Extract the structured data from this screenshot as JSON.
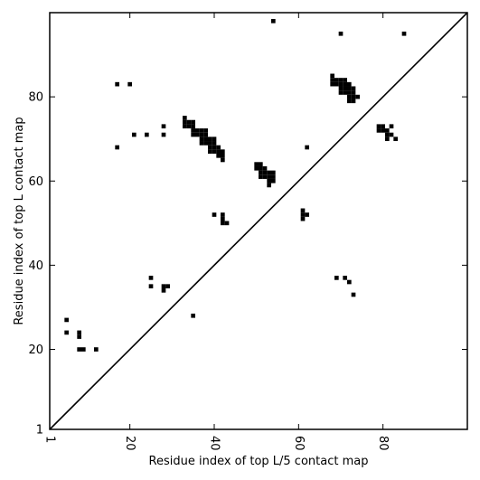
{
  "chart_data": {
    "type": "scatter",
    "title": "",
    "xlabel": "Residue index of top L/5 contact map",
    "ylabel": "Residue index of top L contact map",
    "xlim": [
      1,
      100
    ],
    "ylim": [
      1,
      100
    ],
    "xticks": [
      1,
      20,
      40,
      60,
      80
    ],
    "yticks": [
      1,
      20,
      40,
      60,
      80
    ],
    "grid": false,
    "diagonal": true,
    "marker_color": "#000000",
    "series": [
      {
        "points": [
          [
            54,
            98
          ],
          [
            70,
            95
          ],
          [
            85,
            95
          ],
          [
            17,
            83
          ],
          [
            20,
            83
          ],
          [
            68,
            85
          ],
          [
            68,
            84
          ],
          [
            69,
            84
          ],
          [
            70,
            84
          ],
          [
            71,
            84
          ],
          [
            68,
            83
          ],
          [
            69,
            83
          ],
          [
            70,
            83
          ],
          [
            71,
            83
          ],
          [
            72,
            83
          ],
          [
            70,
            82
          ],
          [
            71,
            82
          ],
          [
            72,
            82
          ],
          [
            73,
            82
          ],
          [
            70,
            81
          ],
          [
            71,
            81
          ],
          [
            72,
            81
          ],
          [
            73,
            81
          ],
          [
            72,
            80
          ],
          [
            73,
            80
          ],
          [
            74,
            80
          ],
          [
            72,
            79
          ],
          [
            73,
            79
          ],
          [
            33,
            75
          ],
          [
            33,
            74
          ],
          [
            34,
            74
          ],
          [
            35,
            74
          ],
          [
            33,
            73
          ],
          [
            34,
            73
          ],
          [
            35,
            73
          ],
          [
            28,
            73
          ],
          [
            35,
            72
          ],
          [
            36,
            72
          ],
          [
            37,
            72
          ],
          [
            38,
            72
          ],
          [
            21,
            71
          ],
          [
            24,
            71
          ],
          [
            28,
            71
          ],
          [
            35,
            71
          ],
          [
            36,
            71
          ],
          [
            37,
            71
          ],
          [
            38,
            71
          ],
          [
            37,
            70
          ],
          [
            38,
            70
          ],
          [
            39,
            70
          ],
          [
            40,
            70
          ],
          [
            37,
            69
          ],
          [
            38,
            69
          ],
          [
            39,
            69
          ],
          [
            40,
            69
          ],
          [
            17,
            68
          ],
          [
            39,
            68
          ],
          [
            40,
            68
          ],
          [
            41,
            68
          ],
          [
            62,
            68
          ],
          [
            39,
            67
          ],
          [
            40,
            67
          ],
          [
            41,
            67
          ],
          [
            42,
            67
          ],
          [
            41,
            66
          ],
          [
            42,
            66
          ],
          [
            42,
            65
          ],
          [
            79,
            73
          ],
          [
            80,
            73
          ],
          [
            82,
            73
          ],
          [
            79,
            72
          ],
          [
            80,
            72
          ],
          [
            81,
            72
          ],
          [
            81,
            71
          ],
          [
            82,
            71
          ],
          [
            81,
            70
          ],
          [
            83,
            70
          ],
          [
            50,
            64
          ],
          [
            51,
            64
          ],
          [
            50,
            63
          ],
          [
            51,
            63
          ],
          [
            52,
            63
          ],
          [
            51,
            62
          ],
          [
            52,
            62
          ],
          [
            53,
            62
          ],
          [
            54,
            62
          ],
          [
            51,
            61
          ],
          [
            52,
            61
          ],
          [
            53,
            61
          ],
          [
            54,
            61
          ],
          [
            53,
            60
          ],
          [
            54,
            60
          ],
          [
            53,
            59
          ],
          [
            61,
            53
          ],
          [
            61,
            52
          ],
          [
            62,
            52
          ],
          [
            61,
            51
          ],
          [
            40,
            52
          ],
          [
            42,
            52
          ],
          [
            42,
            51
          ],
          [
            42,
            50
          ],
          [
            43,
            50
          ],
          [
            25,
            37
          ],
          [
            25,
            35
          ],
          [
            28,
            35
          ],
          [
            29,
            35
          ],
          [
            28,
            34
          ],
          [
            69,
            37
          ],
          [
            71,
            37
          ],
          [
            72,
            36
          ],
          [
            73,
            33
          ],
          [
            35,
            28
          ],
          [
            5,
            27
          ],
          [
            5,
            24
          ],
          [
            8,
            24
          ],
          [
            8,
            23
          ],
          [
            8,
            20
          ],
          [
            9,
            20
          ],
          [
            12,
            20
          ]
        ]
      }
    ]
  }
}
